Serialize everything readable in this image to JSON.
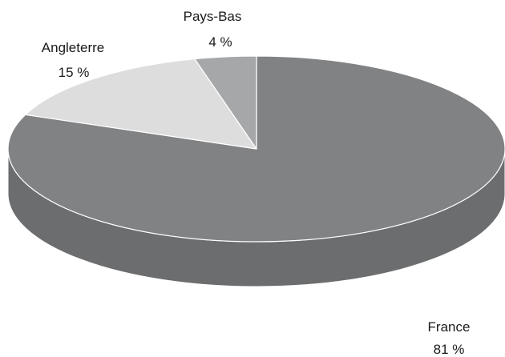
{
  "chart_data": {
    "type": "pie",
    "style": "3d",
    "start_angle_deg": 90,
    "direction": "clockwise",
    "slices": [
      {
        "label": "France",
        "value": 81,
        "value_label": "81 %",
        "color": "#818284",
        "side_color": "#6c6d6f"
      },
      {
        "label": "Angleterre",
        "value": 15,
        "value_label": "15 %",
        "color": "#dddddd",
        "side_color": "#c4c4c4"
      },
      {
        "label": "Pays-Bas",
        "value": 4,
        "value_label": "4 %",
        "color": "#a6a7a9",
        "side_color": "#8e8f91"
      }
    ],
    "title": "",
    "legend": "none"
  }
}
